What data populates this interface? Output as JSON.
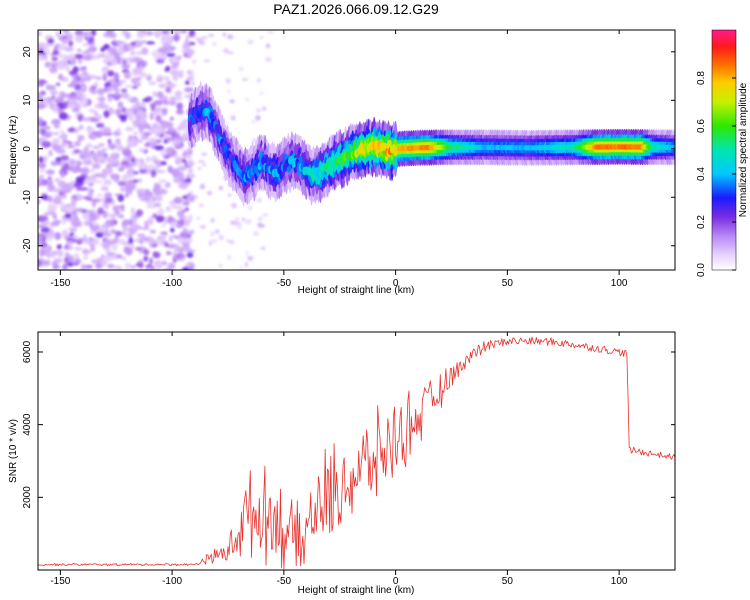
{
  "title": "PAZ1.2026.066.09.12.G29",
  "chart_data": [
    {
      "type": "heatmap",
      "id": "spectrogram",
      "xlabel": "Height of straight line (km)",
      "ylabel": "Frequency (Hz)",
      "xlim": [
        -160,
        125
      ],
      "ylim": [
        -25,
        24.5
      ],
      "xticks": [
        -150,
        -100,
        -50,
        0,
        50,
        100
      ],
      "yticks": [
        -20,
        -10,
        0,
        10,
        20
      ],
      "noise_region_x": [
        -160,
        -93
      ],
      "ridge": [
        [
          -92,
          6.0
        ],
        [
          -88,
          7.5
        ],
        [
          -84,
          8.0
        ],
        [
          -82,
          6.0
        ],
        [
          -79,
          2.5
        ],
        [
          -76,
          -0.5
        ],
        [
          -73,
          -2.5
        ],
        [
          -70,
          -4.5
        ],
        [
          -67,
          -6.0
        ],
        [
          -63,
          -4.5
        ],
        [
          -60,
          -2.5
        ],
        [
          -57,
          -4.0
        ],
        [
          -53,
          -5.0
        ],
        [
          -50,
          -3.5
        ],
        [
          -46,
          -2.5
        ],
        [
          -42,
          -3.5
        ],
        [
          -38,
          -5.5
        ],
        [
          -34,
          -5.0
        ],
        [
          -30,
          -3.5
        ],
        [
          -26,
          -2.5
        ],
        [
          -22,
          -1.5
        ],
        [
          -18,
          -0.5
        ],
        [
          -14,
          0.0
        ],
        [
          -10,
          0.5
        ],
        [
          -6,
          0.0
        ],
        [
          -2,
          -0.5
        ],
        [
          2,
          0.0
        ],
        [
          10,
          0.2
        ],
        [
          20,
          0.3
        ],
        [
          40,
          0.3
        ],
        [
          60,
          0.2
        ],
        [
          80,
          0.3
        ],
        [
          100,
          0.4
        ],
        [
          125,
          0.3
        ]
      ],
      "ridge_amplitude": [
        [
          -92,
          0.3
        ],
        [
          -85,
          0.35
        ],
        [
          -75,
          0.3
        ],
        [
          -65,
          0.35
        ],
        [
          -55,
          0.35
        ],
        [
          -45,
          0.35
        ],
        [
          -35,
          0.45
        ],
        [
          -25,
          0.55
        ],
        [
          -15,
          0.7
        ],
        [
          -5,
          0.8
        ],
        [
          5,
          0.8
        ],
        [
          15,
          0.85
        ],
        [
          25,
          0.55
        ],
        [
          40,
          0.4
        ],
        [
          60,
          0.4
        ],
        [
          80,
          0.5
        ],
        [
          90,
          0.85
        ],
        [
          110,
          0.85
        ],
        [
          115,
          0.5
        ],
        [
          125,
          0.4
        ]
      ],
      "colorbar": {
        "label": "Normalized spectral amplitude",
        "range": [
          0.0,
          1.0
        ],
        "ticks": [
          "0.0",
          "0.2",
          "0.4",
          "0.6",
          "0.8"
        ]
      }
    },
    {
      "type": "line",
      "id": "snr",
      "xlabel": "Height of straight line (km)",
      "ylabel": "SNR (10 * v/v)",
      "xlim": [
        -160,
        125
      ],
      "ylim": [
        0,
        6550
      ],
      "xticks": [
        -150,
        -100,
        -50,
        0,
        50,
        100
      ],
      "yticks": [
        2000,
        4000,
        6000
      ],
      "series": [
        {
          "name": "SNR",
          "color": "#e8312d",
          "step_km": 0.5,
          "baseline": [
            [
              -160,
              150
            ],
            [
              -90,
              150
            ],
            [
              -85,
              300
            ],
            [
              -75,
              500
            ],
            [
              -68,
              1400
            ],
            [
              -60,
              1600
            ],
            [
              -52,
              1300
            ],
            [
              -46,
              900
            ],
            [
              -42,
              600
            ],
            [
              -38,
              1500
            ],
            [
              -30,
              2000
            ],
            [
              -20,
              2500
            ],
            [
              -10,
              3000
            ],
            [
              0,
              3600
            ],
            [
              10,
              4200
            ],
            [
              20,
              4900
            ],
            [
              30,
              5700
            ],
            [
              40,
              6150
            ],
            [
              50,
              6300
            ],
            [
              60,
              6300
            ],
            [
              70,
              6280
            ],
            [
              80,
              6200
            ],
            [
              90,
              6100
            ],
            [
              100,
              6000
            ],
            [
              103.5,
              5950
            ],
            [
              104.5,
              3300
            ],
            [
              110,
              3250
            ],
            [
              125,
              3100
            ]
          ],
          "spread": [
            [
              -160,
              40
            ],
            [
              -90,
              40
            ],
            [
              -85,
              150
            ],
            [
              -75,
              400
            ],
            [
              -68,
              1400
            ],
            [
              -55,
              1500
            ],
            [
              -45,
              1300
            ],
            [
              -40,
              800
            ],
            [
              -36,
              1700
            ],
            [
              -25,
              1600
            ],
            [
              -10,
              1500
            ],
            [
              5,
              1200
            ],
            [
              20,
              600
            ],
            [
              30,
              250
            ],
            [
              45,
              120
            ],
            [
              104,
              100
            ],
            [
              125,
              80
            ]
          ]
        }
      ]
    }
  ]
}
